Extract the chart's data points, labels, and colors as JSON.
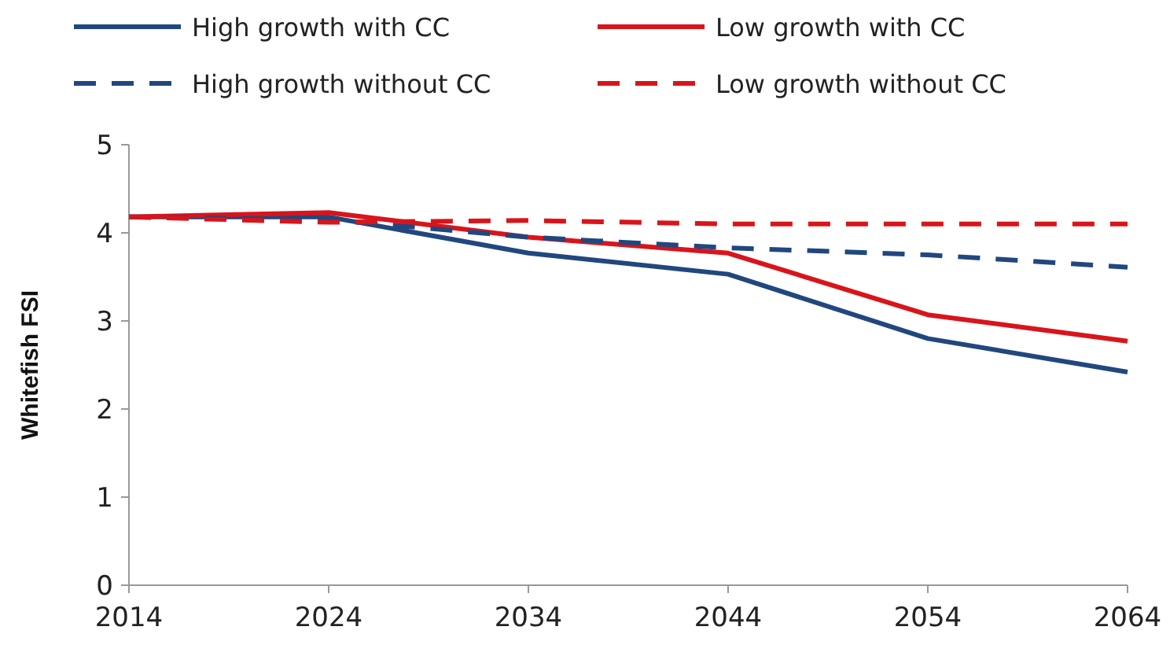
{
  "chart_data": {
    "type": "line",
    "ylabel": "Whitefish FSI",
    "categories": [
      "2014",
      "2024",
      "2034",
      "2044",
      "2054",
      "2064"
    ],
    "ylim": [
      0,
      5
    ],
    "yticks": [
      0,
      1,
      2,
      3,
      4,
      5
    ],
    "grid": false,
    "legend": "top",
    "series": [
      {
        "name": "High growth with CC",
        "color": "#21477f",
        "line_style": "solid",
        "values": [
          4.18,
          4.18,
          3.77,
          3.53,
          2.8,
          2.42
        ]
      },
      {
        "name": "Low growth with CC",
        "color": "#d9141b",
        "line_style": "solid",
        "values": [
          4.18,
          4.23,
          3.95,
          3.77,
          3.07,
          2.77
        ]
      },
      {
        "name": "High growth without CC",
        "color": "#21477f",
        "line_style": "dashed",
        "values": [
          4.18,
          4.15,
          3.95,
          3.83,
          3.75,
          3.61
        ]
      },
      {
        "name": "Low growth without CC",
        "color": "#d9141b",
        "line_style": "dashed",
        "values": [
          4.18,
          4.12,
          4.14,
          4.1,
          4.1,
          4.1
        ]
      }
    ]
  }
}
